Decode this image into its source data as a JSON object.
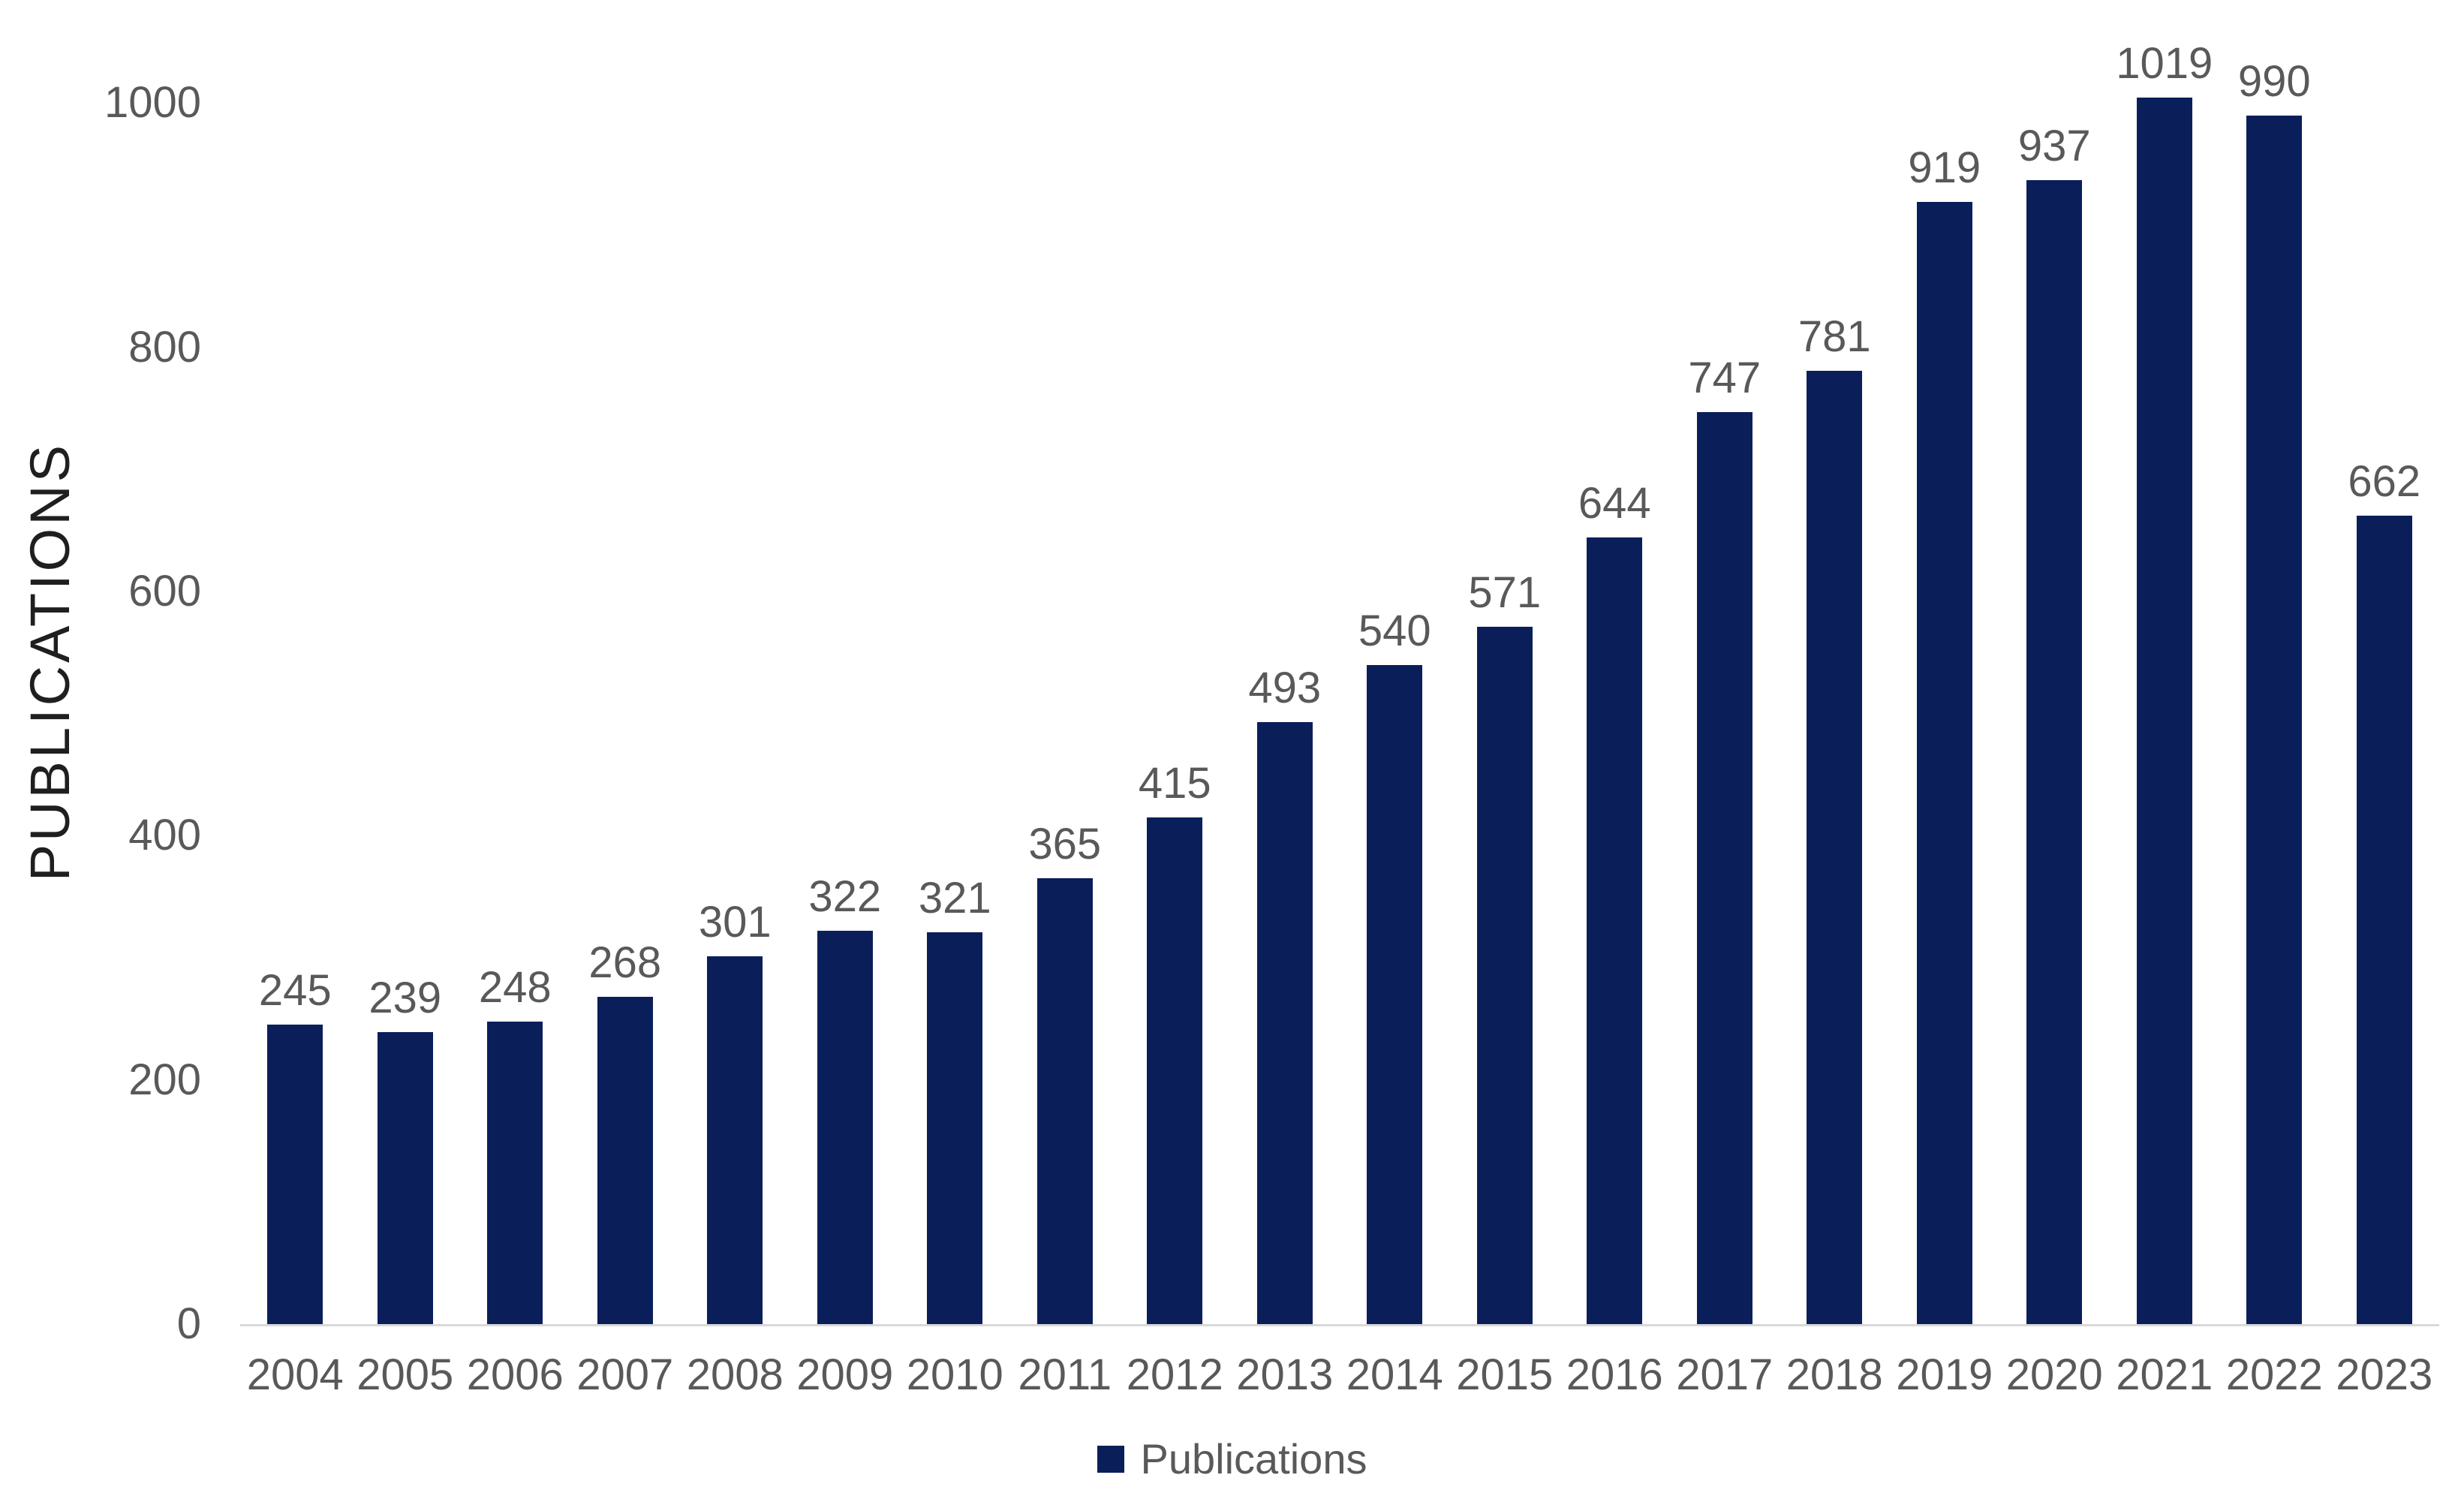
{
  "chart_data": {
    "type": "bar",
    "title": "",
    "categories": [
      "2004",
      "2005",
      "2006",
      "2007",
      "2008",
      "2009",
      "2010",
      "2011",
      "2012",
      "2013",
      "2014",
      "2015",
      "2016",
      "2017",
      "2018",
      "2019",
      "2020",
      "2021",
      "2022",
      "2023"
    ],
    "series": [
      {
        "name": "Publications",
        "values": [
          245,
          239,
          248,
          268,
          301,
          322,
          321,
          365,
          415,
          493,
          540,
          571,
          644,
          747,
          781,
          919,
          937,
          1019,
          990,
          662
        ]
      }
    ],
    "xlabel": "",
    "ylabel": "PUBLICATIONS",
    "y_ticks": [
      0,
      200,
      400,
      600,
      800,
      1000
    ],
    "ylim": [
      0,
      1050
    ],
    "grid": false,
    "data_labels": true,
    "legend_position": "bottom-center",
    "colors": {
      "bar": "#0a1e5a",
      "labels": "#595959",
      "axis_line": "#d9d9d9",
      "axis_title": "#1f1f1f",
      "background": "#ffffff"
    }
  }
}
